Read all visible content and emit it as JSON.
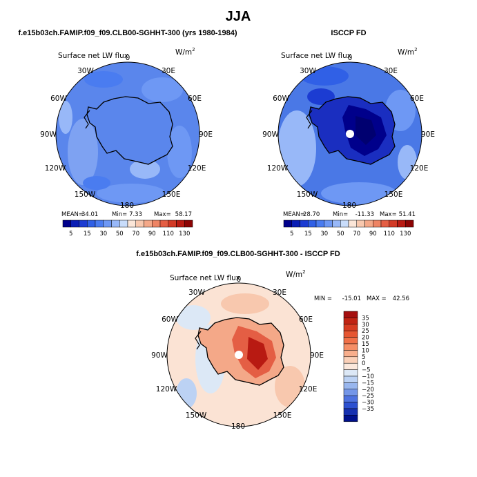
{
  "page": {
    "title": "JJA"
  },
  "chart_data": [
    {
      "type": "heatmap",
      "projection": "south-polar-stereographic",
      "title": "f.e15b03ch.FAMIP.f09_f09.CLB00-SGHHT-300 (yrs 1980-1984)",
      "variable_label": "Surface net LW flux",
      "units_label": "W/m",
      "units_superscript": "2",
      "longitude_labels": [
        "0",
        "30E",
        "60E",
        "90E",
        "120E",
        "150E",
        "180",
        "150W",
        "120W",
        "90W",
        "60W",
        "30W"
      ],
      "stats": {
        "mean_label": "MEAN=",
        "mean": "34.01",
        "min_label": "Min=",
        "min": "7.33",
        "max_label": "Max=",
        "max": "58.17"
      },
      "colorbar": {
        "orientation": "horizontal",
        "tick_labels": [
          "5",
          "15",
          "30",
          "50",
          "70",
          "90",
          "110",
          "130"
        ],
        "colors": [
          "#00008b",
          "#0a1eb4",
          "#1c3cd2",
          "#3060e6",
          "#4a7cf0",
          "#6e98f4",
          "#98b8f8",
          "#c8dcfa",
          "#fbe6d8",
          "#f8c8ae",
          "#f4a888",
          "#ee8464",
          "#e45e44",
          "#d23a26",
          "#b81a12",
          "#8c0404"
        ]
      },
      "field_color": "#5a86ec"
    },
    {
      "type": "heatmap",
      "projection": "south-polar-stereographic",
      "title": "ISCCP FD",
      "variable_label": "Surface net LW flux",
      "units_label": "W/m",
      "units_superscript": "2",
      "longitude_labels": [
        "0",
        "30E",
        "60E",
        "90E",
        "120E",
        "150E",
        "180",
        "150W",
        "120W",
        "90W",
        "60W",
        "30W"
      ],
      "stats": {
        "mean_label": "MEAN=",
        "mean": "28.70",
        "min_label": "Min=",
        "min": "-11.33",
        "max_label": "Max=",
        "max": "51.41"
      },
      "colorbar": {
        "orientation": "horizontal",
        "tick_labels": [
          "5",
          "15",
          "30",
          "50",
          "70",
          "90",
          "110",
          "130"
        ],
        "colors": [
          "#00008b",
          "#0a1eb4",
          "#1c3cd2",
          "#3060e6",
          "#4a7cf0",
          "#6e98f4",
          "#98b8f8",
          "#c8dcfa",
          "#fbe6d8",
          "#f8c8ae",
          "#f4a888",
          "#ee8464",
          "#e45e44",
          "#d23a26",
          "#b81a12",
          "#8c0404"
        ]
      },
      "field_color": "#4a78e6"
    },
    {
      "type": "heatmap",
      "projection": "south-polar-stereographic",
      "title": "f.e15b03ch.FAMIP.f09_f09.CLB00-SGHHT-300 - ISCCP FD",
      "variable_label": "Surface net LW flux",
      "units_label": "W/m",
      "units_superscript": "2",
      "longitude_labels": [
        "0",
        "30E",
        "60E",
        "90E",
        "120E",
        "150E",
        "180",
        "150W",
        "120W",
        "90W",
        "60W",
        "30W"
      ],
      "stats": {
        "min_label": "MIN = ",
        "min": "-15.01",
        "max_label": "MAX = ",
        "max": "42.56"
      },
      "colorbar": {
        "orientation": "vertical",
        "tick_labels": [
          "35",
          "30",
          "25",
          "20",
          "15",
          "10",
          "5",
          "0",
          "−5",
          "−10",
          "−15",
          "−20",
          "−25",
          "−30",
          "−35"
        ],
        "colors": [
          "#a50f0f",
          "#c02414",
          "#d63c22",
          "#e65632",
          "#f07048",
          "#f58e66",
          "#f8ae8c",
          "#fad0b8",
          "#fbe8dc",
          "#dce8f6",
          "#bcd2f4",
          "#98b6ee",
          "#7496e8",
          "#4e72e0",
          "#2c50d0",
          "#1630b0",
          "#00108c"
        ]
      },
      "field_color": "#fbe3d4"
    }
  ]
}
